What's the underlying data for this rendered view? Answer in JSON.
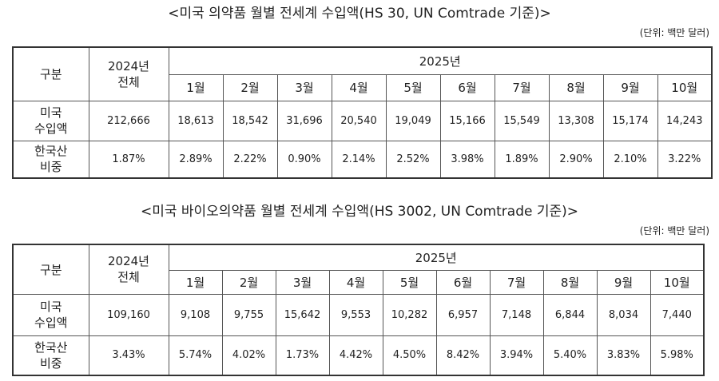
{
  "tables": [
    {
      "title": "<미국 의약품 월별 전세계 수입액(HS 30, UN Comtrade 기준)>",
      "unit": "(단위: 백만 달러)",
      "header": {
        "label": "구분",
        "prev_year": "2024년",
        "prev_total": "전체",
        "year": "2025년",
        "months": [
          "1월",
          "2월",
          "3월",
          "4월",
          "5월",
          "6월",
          "7월",
          "8월",
          "9월",
          "10월"
        ]
      },
      "rows": [
        {
          "label": [
            "미국",
            "수입액"
          ],
          "total": "212,666",
          "values": [
            "18,613",
            "18,542",
            "31,696",
            "20,540",
            "19,049",
            "15,166",
            "15,549",
            "13,308",
            "15,174",
            "14,243"
          ]
        },
        {
          "label": [
            "한국산",
            "비중"
          ],
          "total": "1.87%",
          "values": [
            "2.89%",
            "2.22%",
            "0.90%",
            "2.14%",
            "2.52%",
            "3.98%",
            "1.89%",
            "2.90%",
            "2.10%",
            "3.22%"
          ]
        }
      ]
    },
    {
      "title": "<미국 바이오의약품 월별 전세계 수입액(HS 3002, UN Comtrade 기준)>",
      "unit": "(단위: 백만 달러)",
      "header": {
        "label": "구분",
        "prev_year": "2024년",
        "prev_total": "전체",
        "year": "2025년",
        "months": [
          "1월",
          "2월",
          "3월",
          "4월",
          "5월",
          "6월",
          "7월",
          "8월",
          "9월",
          "10월"
        ]
      },
      "rows": [
        {
          "label": [
            "미국",
            "수입액"
          ],
          "total": "109,160",
          "values": [
            "9,108",
            "9,755",
            "15,642",
            "9,553",
            "10,282",
            "6,957",
            "7,148",
            "6,844",
            "8,034",
            "7,440"
          ]
        },
        {
          "label": [
            "한국산",
            "비중"
          ],
          "total": "3.43%",
          "values": [
            "5.74%",
            "4.02%",
            "1.73%",
            "4.42%",
            "4.50%",
            "8.42%",
            "3.94%",
            "5.40%",
            "3.83%",
            "5.98%"
          ]
        }
      ]
    }
  ]
}
